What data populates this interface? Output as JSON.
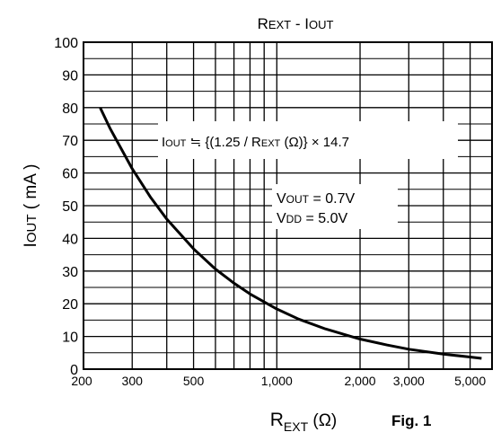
{
  "chart_data": {
    "type": "line",
    "title": "REXT - IOUT",
    "xlabel": "REXT (Ω)",
    "ylabel": "IOUT ( mA )",
    "x_scale": "log",
    "xlim": [
      200,
      6000
    ],
    "ylim": [
      0,
      100
    ],
    "x_ticks": [
      200,
      300,
      500,
      1000,
      2000,
      3000,
      5000
    ],
    "x_tick_labels": [
      "200",
      "300",
      "500",
      "1,000",
      "2,000",
      "3,000",
      "5,000"
    ],
    "y_ticks": [
      0,
      10,
      20,
      30,
      40,
      50,
      60,
      70,
      80,
      90,
      100
    ],
    "y_tick_labels": [
      "0",
      "10",
      "20",
      "30",
      "40",
      "50",
      "60",
      "70",
      "80",
      "90",
      "100"
    ],
    "grid": true,
    "series": [
      {
        "x": [
          230,
          250,
          300,
          350,
          400,
          500,
          600,
          700,
          800,
          1000,
          1200,
          1500,
          2000,
          2500,
          3000,
          4000,
          5000,
          5500
        ],
        "y": [
          79.9,
          73.5,
          61.3,
          52.5,
          45.9,
          36.8,
          30.6,
          26.3,
          23.0,
          18.4,
          15.3,
          12.3,
          9.2,
          7.4,
          6.1,
          4.6,
          3.7,
          3.3
        ]
      }
    ],
    "annotations": {
      "formula": "IOUT ≒ {(1.25 / REXT (Ω)} × 14.7",
      "vout": "VOUT = 0.7V",
      "vdd": "VDD = 5.0V"
    },
    "figure_label": "Fig. 1"
  }
}
